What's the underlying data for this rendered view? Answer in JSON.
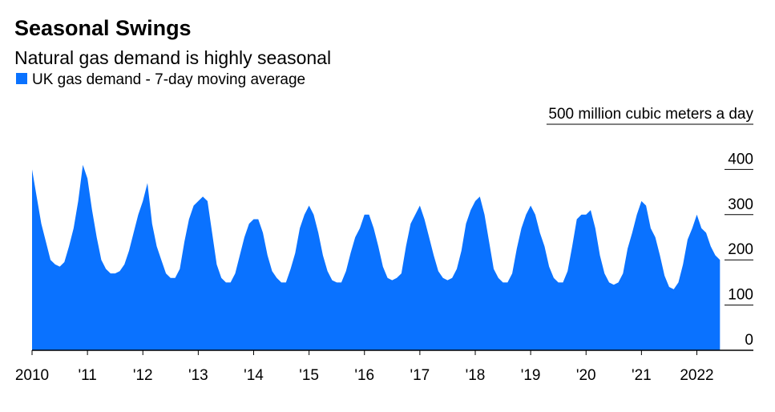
{
  "chart_data": {
    "type": "area",
    "title": "Seasonal Swings",
    "subtitle": "Natural gas demand is highly seasonal",
    "series": [
      {
        "name": "UK gas demand - 7-day moving average",
        "color": "#0a72ff",
        "x": [
          2010,
          2010.083,
          2010.167,
          2010.25,
          2010.333,
          2010.417,
          2010.5,
          2010.583,
          2010.667,
          2010.75,
          2010.833,
          2010.917,
          2011,
          2011.083,
          2011.167,
          2011.25,
          2011.333,
          2011.417,
          2011.5,
          2011.583,
          2011.667,
          2011.75,
          2011.833,
          2011.917,
          2012,
          2012.083,
          2012.167,
          2012.25,
          2012.333,
          2012.417,
          2012.5,
          2012.583,
          2012.667,
          2012.75,
          2012.833,
          2012.917,
          2013,
          2013.083,
          2013.167,
          2013.25,
          2013.333,
          2013.417,
          2013.5,
          2013.583,
          2013.667,
          2013.75,
          2013.833,
          2013.917,
          2014,
          2014.083,
          2014.167,
          2014.25,
          2014.333,
          2014.417,
          2014.5,
          2014.583,
          2014.667,
          2014.75,
          2014.833,
          2014.917,
          2015,
          2015.083,
          2015.167,
          2015.25,
          2015.333,
          2015.417,
          2015.5,
          2015.583,
          2015.667,
          2015.75,
          2015.833,
          2015.917,
          2016,
          2016.083,
          2016.167,
          2016.25,
          2016.333,
          2016.417,
          2016.5,
          2016.583,
          2016.667,
          2016.75,
          2016.833,
          2016.917,
          2017,
          2017.083,
          2017.167,
          2017.25,
          2017.333,
          2017.417,
          2017.5,
          2017.583,
          2017.667,
          2017.75,
          2017.833,
          2017.917,
          2018,
          2018.083,
          2018.167,
          2018.25,
          2018.333,
          2018.417,
          2018.5,
          2018.583,
          2018.667,
          2018.75,
          2018.833,
          2018.917,
          2019,
          2019.083,
          2019.167,
          2019.25,
          2019.333,
          2019.417,
          2019.5,
          2019.583,
          2019.667,
          2019.75,
          2019.833,
          2019.917,
          2020,
          2020.083,
          2020.167,
          2020.25,
          2020.333,
          2020.417,
          2020.5,
          2020.583,
          2020.667,
          2020.75,
          2020.833,
          2020.917,
          2021,
          2021.083,
          2021.167,
          2021.25,
          2021.333,
          2021.417,
          2021.5,
          2021.583,
          2021.667,
          2021.75,
          2021.833,
          2021.917,
          2022,
          2022.083,
          2022.167,
          2022.25,
          2022.333,
          2022.417
        ],
        "values": [
          400,
          340,
          280,
          240,
          200,
          190,
          185,
          195,
          230,
          270,
          330,
          410,
          380,
          310,
          250,
          200,
          180,
          170,
          170,
          175,
          190,
          220,
          260,
          300,
          330,
          370,
          280,
          230,
          200,
          170,
          160,
          160,
          180,
          240,
          290,
          320,
          330,
          340,
          330,
          260,
          190,
          160,
          150,
          150,
          170,
          210,
          250,
          280,
          290,
          290,
          260,
          210,
          175,
          160,
          150,
          150,
          180,
          215,
          270,
          300,
          320,
          300,
          260,
          210,
          175,
          155,
          150,
          150,
          175,
          215,
          250,
          270,
          300,
          300,
          270,
          230,
          185,
          160,
          155,
          160,
          170,
          230,
          280,
          300,
          320,
          290,
          250,
          210,
          175,
          160,
          155,
          160,
          180,
          220,
          280,
          310,
          330,
          340,
          300,
          240,
          180,
          160,
          150,
          150,
          170,
          225,
          270,
          300,
          320,
          300,
          260,
          230,
          185,
          160,
          150,
          150,
          175,
          230,
          290,
          300,
          300,
          310,
          270,
          210,
          170,
          150,
          145,
          150,
          170,
          225,
          260,
          300,
          330,
          320,
          270,
          250,
          210,
          165,
          140,
          135,
          150,
          190,
          245,
          270,
          300,
          270,
          260,
          230,
          210,
          200
        ]
      }
    ],
    "xlim": [
      2010,
      2023.02
    ],
    "xticks": [
      2010,
      {
        "value": 2011,
        "label": "'11"
      },
      {
        "value": 2012,
        "label": "'12"
      },
      {
        "value": 2013,
        "label": "'13"
      },
      {
        "value": 2014,
        "label": "'14"
      },
      {
        "value": 2015,
        "label": "'15"
      },
      {
        "value": 2016,
        "label": "'16"
      },
      {
        "value": 2017,
        "label": "'17"
      },
      {
        "value": 2018,
        "label": "'18"
      },
      {
        "value": 2019,
        "label": "'19"
      },
      {
        "value": 2020,
        "label": "'20"
      },
      {
        "value": 2021,
        "label": "'21"
      },
      2022
    ],
    "ylim": [
      0,
      500
    ],
    "yticks": [
      0,
      100,
      200,
      300,
      400,
      {
        "value": 500,
        "label": "500 million cubic meters a day"
      }
    ]
  }
}
